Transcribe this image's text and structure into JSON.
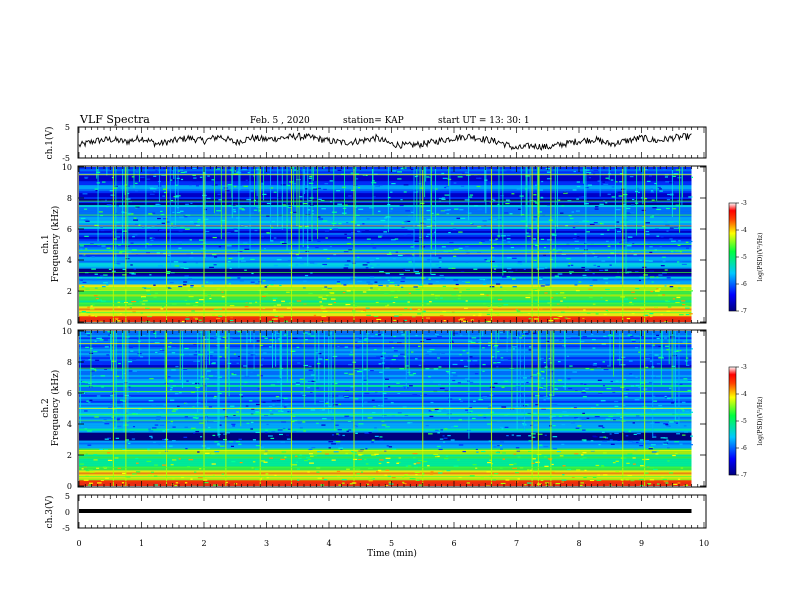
{
  "header": {
    "title": "VLF Spectra",
    "date": "Feb. 5 , 2020",
    "station": "station= KAP",
    "start": "start UT = 13: 30: 1"
  },
  "chart_data": [
    {
      "type": "line",
      "name": "waveform-ch1",
      "ylabel": "ch.1(V)",
      "ylim": [
        -5,
        5
      ],
      "yticks": [
        "5",
        "-5"
      ],
      "x": [
        0,
        0.25,
        0.5,
        0.75,
        1.0,
        1.25,
        1.5,
        1.75,
        2.0,
        2.25,
        2.5,
        2.75,
        3.0,
        3.25,
        3.5,
        3.75,
        4.0,
        4.25,
        4.5,
        4.75,
        5.0,
        5.25,
        5.5,
        5.75,
        6.0,
        6.25,
        6.5,
        6.75,
        7.0,
        7.25,
        7.5,
        7.75,
        8.0,
        8.25,
        8.5,
        8.75,
        9.0,
        9.25,
        9.5,
        9.8
      ],
      "y": [
        -1.0,
        0.5,
        1.0,
        0.2,
        1.5,
        -0.5,
        0.5,
        1.5,
        0.5,
        2.0,
        0.0,
        1.5,
        1.0,
        1.5,
        2.0,
        1.5,
        0.5,
        0.0,
        0.5,
        1.5,
        -0.5,
        -1.0,
        -0.5,
        0.5,
        1.5,
        2.0,
        1.0,
        0.0,
        -2.0,
        -1.0,
        -1.5,
        -0.5,
        0.5,
        1.0,
        -0.5,
        0.5,
        1.5,
        0.5,
        1.5,
        2.0
      ]
    },
    {
      "type": "heatmap",
      "name": "spectrogram-ch1",
      "ylabel_top": "ch.1",
      "ylabel": "Frequency (kHz)",
      "xlim": [
        0,
        10
      ],
      "ylim": [
        0,
        10
      ],
      "yticks": [
        "0",
        "2",
        "4",
        "6",
        "8",
        "10"
      ],
      "colorbar": {
        "label": "log(PSD)(V²/Hz)",
        "range": [
          -7,
          -3
        ],
        "ticks": [
          "-3",
          "-4",
          "-5",
          "-6",
          "-7"
        ]
      },
      "data_end_min": 9.8,
      "bright_vertical_lines_min": [
        0.55,
        0.75,
        1.4,
        2.0,
        2.35,
        2.9,
        3.4,
        4.4,
        5.5,
        6.6,
        7.25,
        7.35,
        7.55,
        8.7,
        9.05
      ]
    },
    {
      "type": "heatmap",
      "name": "spectrogram-ch2",
      "ylabel_top": "ch.2",
      "ylabel": "Frequency (kHz)",
      "xlim": [
        0,
        10
      ],
      "ylim": [
        0,
        10
      ],
      "yticks": [
        "0",
        "2",
        "4",
        "6",
        "8",
        "10"
      ],
      "colorbar": {
        "label": "log(PSD)(V²/Hz)",
        "range": [
          -7,
          -3
        ],
        "ticks": [
          "-3",
          "-4",
          "-5",
          "-6",
          "-7"
        ]
      },
      "data_end_min": 9.8,
      "bright_vertical_lines_min": [
        0.55,
        0.75,
        1.4,
        2.0,
        2.35,
        2.9,
        3.4,
        4.4,
        5.5,
        6.6,
        7.25,
        7.35,
        7.55,
        8.7,
        9.05
      ]
    },
    {
      "type": "line",
      "name": "waveform-ch3",
      "ylabel": "ch.3(V)",
      "ylim": [
        -5,
        5
      ],
      "yticks": [
        "5",
        "0",
        "-5"
      ],
      "x": [
        0,
        9.8
      ],
      "y": [
        0,
        0
      ]
    }
  ],
  "xaxis": {
    "label": "Time (min)",
    "xlim": [
      0,
      10
    ],
    "ticks": [
      "0",
      "1",
      "2",
      "3",
      "4",
      "5",
      "6",
      "7",
      "8",
      "9",
      "10"
    ]
  }
}
